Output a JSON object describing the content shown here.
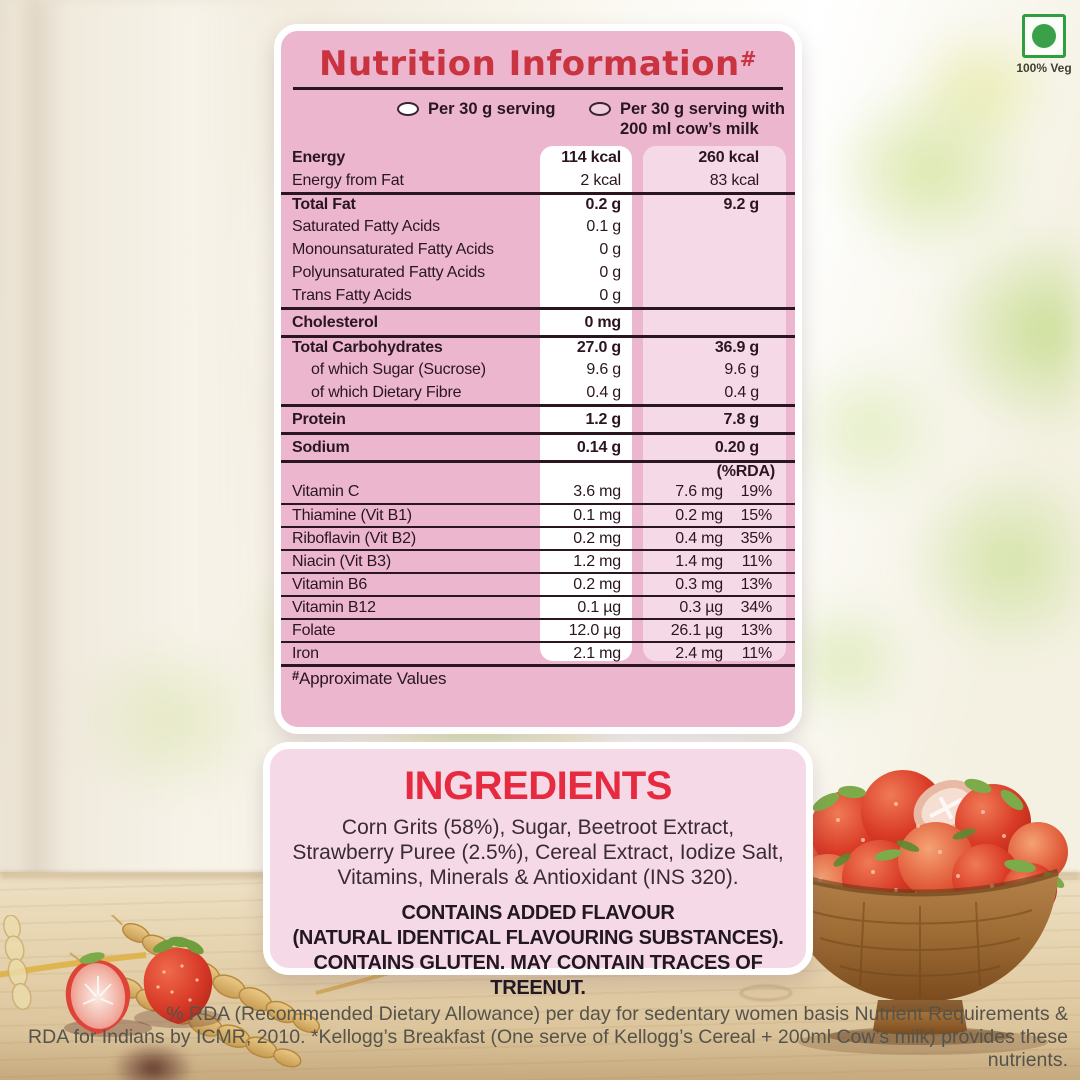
{
  "veg_mark": {
    "label": "100% Veg",
    "color": "#2f9e41"
  },
  "icons": {
    "veg_mark_icon": "green-dot-in-square",
    "plain_serving_swatch_icon": "white-oval",
    "milk_serving_swatch_icon": "pink-oval"
  },
  "nutrition_panel": {
    "title": "Nutrition Information",
    "title_sup": "#",
    "legend": [
      {
        "line1": "Per 30 g serving",
        "line2": "",
        "swatch": "white"
      },
      {
        "line1": "Per 30 g serving with",
        "line2": "200 ml cow’s milk",
        "swatch": "pink"
      }
    ],
    "rows": [
      {
        "label": "Energy",
        "per30": "114 kcal",
        "withMilk": "260 kcal",
        "bold": true
      },
      {
        "label": "Energy from Fat",
        "per30": "2 kcal",
        "withMilk": "83 kcal"
      },
      {
        "label": "Total Fat",
        "per30": "0.2 g",
        "withMilk": "9.2 g",
        "bold": true,
        "sep": "thick"
      },
      {
        "label": "Saturated Fatty Acids",
        "per30": "0.1 g",
        "withMilk": ""
      },
      {
        "label": "Monounsaturated Fatty Acids",
        "per30": "0 g",
        "withMilk": ""
      },
      {
        "label": "Polyunsaturated Fatty Acids",
        "per30": "0 g",
        "withMilk": ""
      },
      {
        "label": "Trans Fatty Acids",
        "per30": "0 g",
        "withMilk": ""
      },
      {
        "label": "Cholesterol",
        "per30": "0 mg",
        "withMilk": "",
        "bold": true,
        "sep": "thick",
        "tall": true
      },
      {
        "label": "Total Carbohydrates",
        "per30": "27.0 g",
        "withMilk": "36.9 g",
        "bold": true,
        "sep": "thick"
      },
      {
        "label": "of which Sugar (Sucrose)",
        "per30": "9.6 g",
        "withMilk": "9.6 g",
        "indent": true
      },
      {
        "label": "of which Dietary Fibre",
        "per30": "0.4 g",
        "withMilk": "0.4 g",
        "indent": true
      },
      {
        "label": "Protein",
        "per30": "1.2 g",
        "withMilk": "7.8 g",
        "bold": true,
        "sep": "thick",
        "tall": true
      },
      {
        "label": "Sodium",
        "per30": "0.14 g",
        "withMilk": "0.20 g",
        "bold": true,
        "sep": "thick",
        "tall": true
      }
    ],
    "rda_header": "(%RDA)",
    "vitamin_rows": [
      {
        "label": "Vitamin C",
        "per30": "3.6 mg",
        "withMilk": "7.6 mg",
        "rda": "19%"
      },
      {
        "label": "Thiamine (Vit B1)",
        "per30": "0.1 mg",
        "withMilk": "0.2 mg",
        "rda": "15%"
      },
      {
        "label": "Riboflavin (Vit B2)",
        "per30": "0.2 mg",
        "withMilk": "0.4 mg",
        "rda": "35%"
      },
      {
        "label": "Niacin (Vit B3)",
        "per30": "1.2 mg",
        "withMilk": "1.4 mg",
        "rda": "11%"
      },
      {
        "label": "Vitamin B6",
        "per30": "0.2 mg",
        "withMilk": "0.3 mg",
        "rda": "13%"
      },
      {
        "label": "Vitamin B12",
        "per30": "0.1 µg",
        "withMilk": "0.3 µg",
        "rda": "34%"
      },
      {
        "label": "Folate",
        "per30": "12.0 µg",
        "withMilk": "26.1 µg",
        "rda": "13%"
      },
      {
        "label": "Iron",
        "per30": "2.1 mg",
        "withMilk": "2.4 mg",
        "rda": "11%"
      }
    ],
    "footnote_sup": "#",
    "footnote": "Approximate Values"
  },
  "ingredients_panel": {
    "title": "INGREDIENTS",
    "body_lines": [
      "Corn Grits (58%), Sugar, Beetroot Extract,",
      "Strawberry Puree (2.5%), Cereal Extract, Iodize Salt,",
      "Vitamins, Minerals & Antioxidant (INS 320)."
    ],
    "allergen_lines": [
      "CONTAINS ADDED FLAVOUR",
      "(NATURAL IDENTICAL FLAVOURING SUBSTANCES).",
      "CONTAINS GLUTEN. MAY CONTAIN TRACES OF TREENUT."
    ]
  },
  "footer": {
    "line1": "% RDA (Recommended Dietary Allowance) per day for sedentary women basis Nutrient Requirements &",
    "line2": "RDA for Indians by ICMR, 2010. *Kellogg’s Breakfast (One serve of Kellogg’s Cereal + 200ml Cow’s milk) provides these nutrients."
  },
  "colors": {
    "panel_pink": "#ecb6cf",
    "light_pink_column": "#f6d9e7",
    "ingredients_pink": "#f5d9e6",
    "title_red": "#c93440",
    "ingredients_red": "#e62a40",
    "ink": "#2a1620",
    "veg_green": "#2f9e41"
  }
}
